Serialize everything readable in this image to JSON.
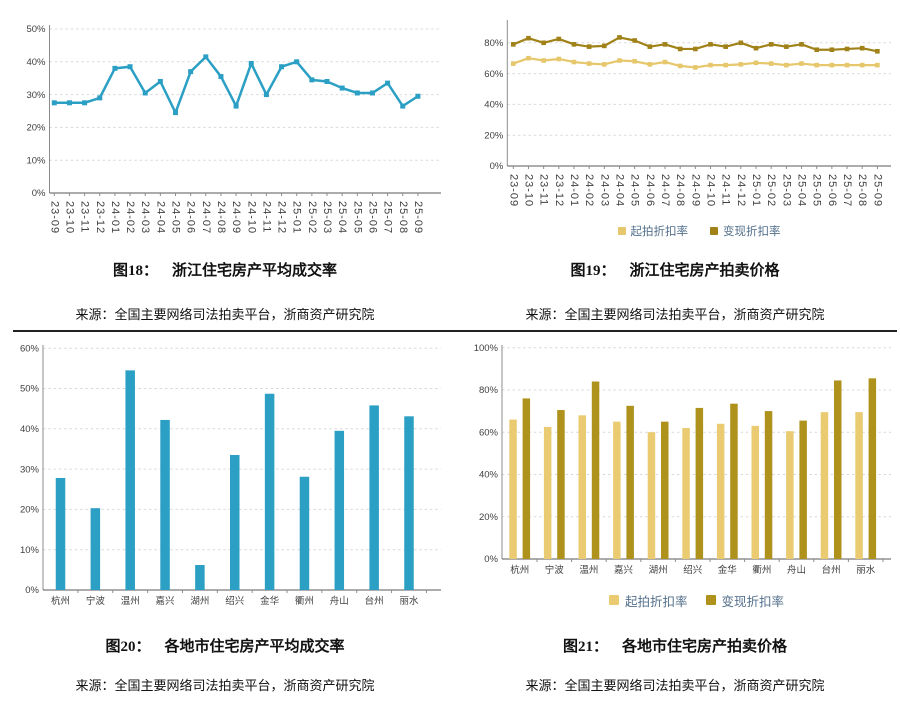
{
  "figures": [
    {
      "number": "图18：",
      "title": "浙江住宅房产平均成交率",
      "source": "来源：全国主要网络司法拍卖平台，浙商资产研究院"
    },
    {
      "number": "图19：",
      "title": "浙江住宅房产拍卖价格",
      "source": "来源：全国主要网络司法拍卖平台，浙商资产研究院"
    },
    {
      "number": "图20：",
      "title": "各地市住宅房产平均成交率",
      "source": "来源：全国主要网络司法拍卖平台，浙商资产研究院"
    },
    {
      "number": "图21：",
      "title": "各地市住宅房产拍卖价格",
      "source": "来源：全国主要网络司法拍卖平台，浙商资产研究院"
    }
  ],
  "colors": {
    "teal": "#2B9FC4",
    "light_gold_line": "#E7C76C",
    "dark_gold_line": "#A08218",
    "light_gold_bar": "#EACB72",
    "dark_gold_bar": "#AF921C",
    "grid": "#D9D9D9",
    "axis": "#8C8C8C",
    "baseline": "#595959",
    "tick_text": "#404040",
    "legend_text": "#54708C",
    "divider": "#222222"
  },
  "chart_data": [
    {
      "type": "line",
      "title": "图18： 浙江住宅房产平均成交率",
      "x": [
        "23-09",
        "23-10",
        "23-11",
        "23-12",
        "24-01",
        "24-02",
        "24-03",
        "24-04",
        "24-05",
        "24-06",
        "24-07",
        "24-08",
        "24-09",
        "24-10",
        "24-11",
        "24-12",
        "25-01",
        "25-02",
        "25-03",
        "25-04",
        "25-05",
        "25-06",
        "25-07",
        "25-08",
        "25-09"
      ],
      "series": [
        {
          "name": "平均成交率",
          "color": "#2B9FC4",
          "values": [
            27.5,
            27.5,
            27.5,
            29,
            38,
            38.5,
            30.5,
            34,
            24.5,
            37,
            41.5,
            35.5,
            26.5,
            39.5,
            30,
            38.5,
            40,
            34.5,
            34,
            32,
            30.5,
            30.5,
            33.5,
            26.5,
            29.5
          ]
        }
      ],
      "xlabel": "",
      "ylabel": "",
      "ylim": [
        0,
        50
      ],
      "yticks": [
        0,
        10,
        20,
        30,
        40,
        50
      ],
      "grid": true,
      "legend": false
    },
    {
      "type": "line",
      "title": "图19： 浙江住宅房产拍卖价格",
      "x": [
        "23-09",
        "23-10",
        "23-11",
        "23-12",
        "24-01",
        "24-02",
        "24-03",
        "24-04",
        "24-05",
        "24-06",
        "24-07",
        "24-08",
        "24-09",
        "24-10",
        "24-11",
        "24-12",
        "25-01",
        "25-02",
        "25-03",
        "25-04",
        "25-05",
        "25-06",
        "25-07",
        "25-08",
        "25-09"
      ],
      "series": [
        {
          "name": "起拍折扣率",
          "color": "#E7C76C",
          "values": [
            66.5,
            70,
            68.5,
            69.5,
            67.5,
            66.5,
            66,
            68.5,
            68,
            66,
            67.5,
            65,
            64,
            65.5,
            65.5,
            66,
            67,
            66.5,
            65.5,
            66.5,
            65.5,
            65.5,
            65.5,
            65.5,
            65.5
          ]
        },
        {
          "name": "变现折扣率",
          "color": "#A08218",
          "values": [
            79,
            83,
            80,
            82.5,
            79,
            77.5,
            78,
            83.5,
            81.5,
            77.5,
            79,
            76,
            76,
            79,
            77.5,
            80,
            76.5,
            79,
            77.5,
            79,
            75.5,
            75.5,
            76,
            76.5,
            74.5
          ]
        }
      ],
      "xlabel": "",
      "ylabel": "",
      "ylim": [
        0,
        95
      ],
      "yticks": [
        0,
        20,
        40,
        60,
        80
      ],
      "grid": true,
      "legend": true,
      "legend_position": "bottom"
    },
    {
      "type": "bar",
      "title": "图20： 各地市住宅房产平均成交率",
      "categories": [
        "杭州",
        "宁波",
        "温州",
        "嘉兴",
        "湖州",
        "绍兴",
        "金华",
        "衢州",
        "舟山",
        "台州",
        "丽水"
      ],
      "series": [
        {
          "name": "平均成交率",
          "color": "#2B9FC4",
          "values": [
            27.8,
            20.3,
            54.5,
            42.2,
            6.2,
            33.5,
            48.7,
            28.1,
            39.5,
            45.8,
            43.1
          ]
        }
      ],
      "xlabel": "",
      "ylabel": "",
      "ylim": [
        0,
        60
      ],
      "yticks": [
        0,
        10,
        20,
        30,
        40,
        50,
        60
      ],
      "grid": true,
      "legend": false
    },
    {
      "type": "bar",
      "title": "图21： 各地市住宅房产拍卖价格",
      "categories": [
        "杭州",
        "宁波",
        "温州",
        "嘉兴",
        "湖州",
        "绍兴",
        "金华",
        "衢州",
        "舟山",
        "台州",
        "丽水"
      ],
      "series": [
        {
          "name": "起拍折扣率",
          "color": "#EACB72",
          "values": [
            66,
            62.5,
            68,
            65,
            60,
            62,
            64,
            63,
            60.5,
            69.5,
            69.5
          ]
        },
        {
          "name": "变现折扣率",
          "color": "#AF921C",
          "values": [
            76,
            70.5,
            84,
            72.5,
            65,
            71.5,
            73.5,
            70,
            65.5,
            84.5,
            85.5
          ]
        }
      ],
      "xlabel": "",
      "ylabel": "",
      "ylim": [
        0,
        100
      ],
      "yticks": [
        0,
        20,
        40,
        60,
        80,
        100
      ],
      "grid": true,
      "legend": true,
      "legend_position": "bottom"
    }
  ]
}
